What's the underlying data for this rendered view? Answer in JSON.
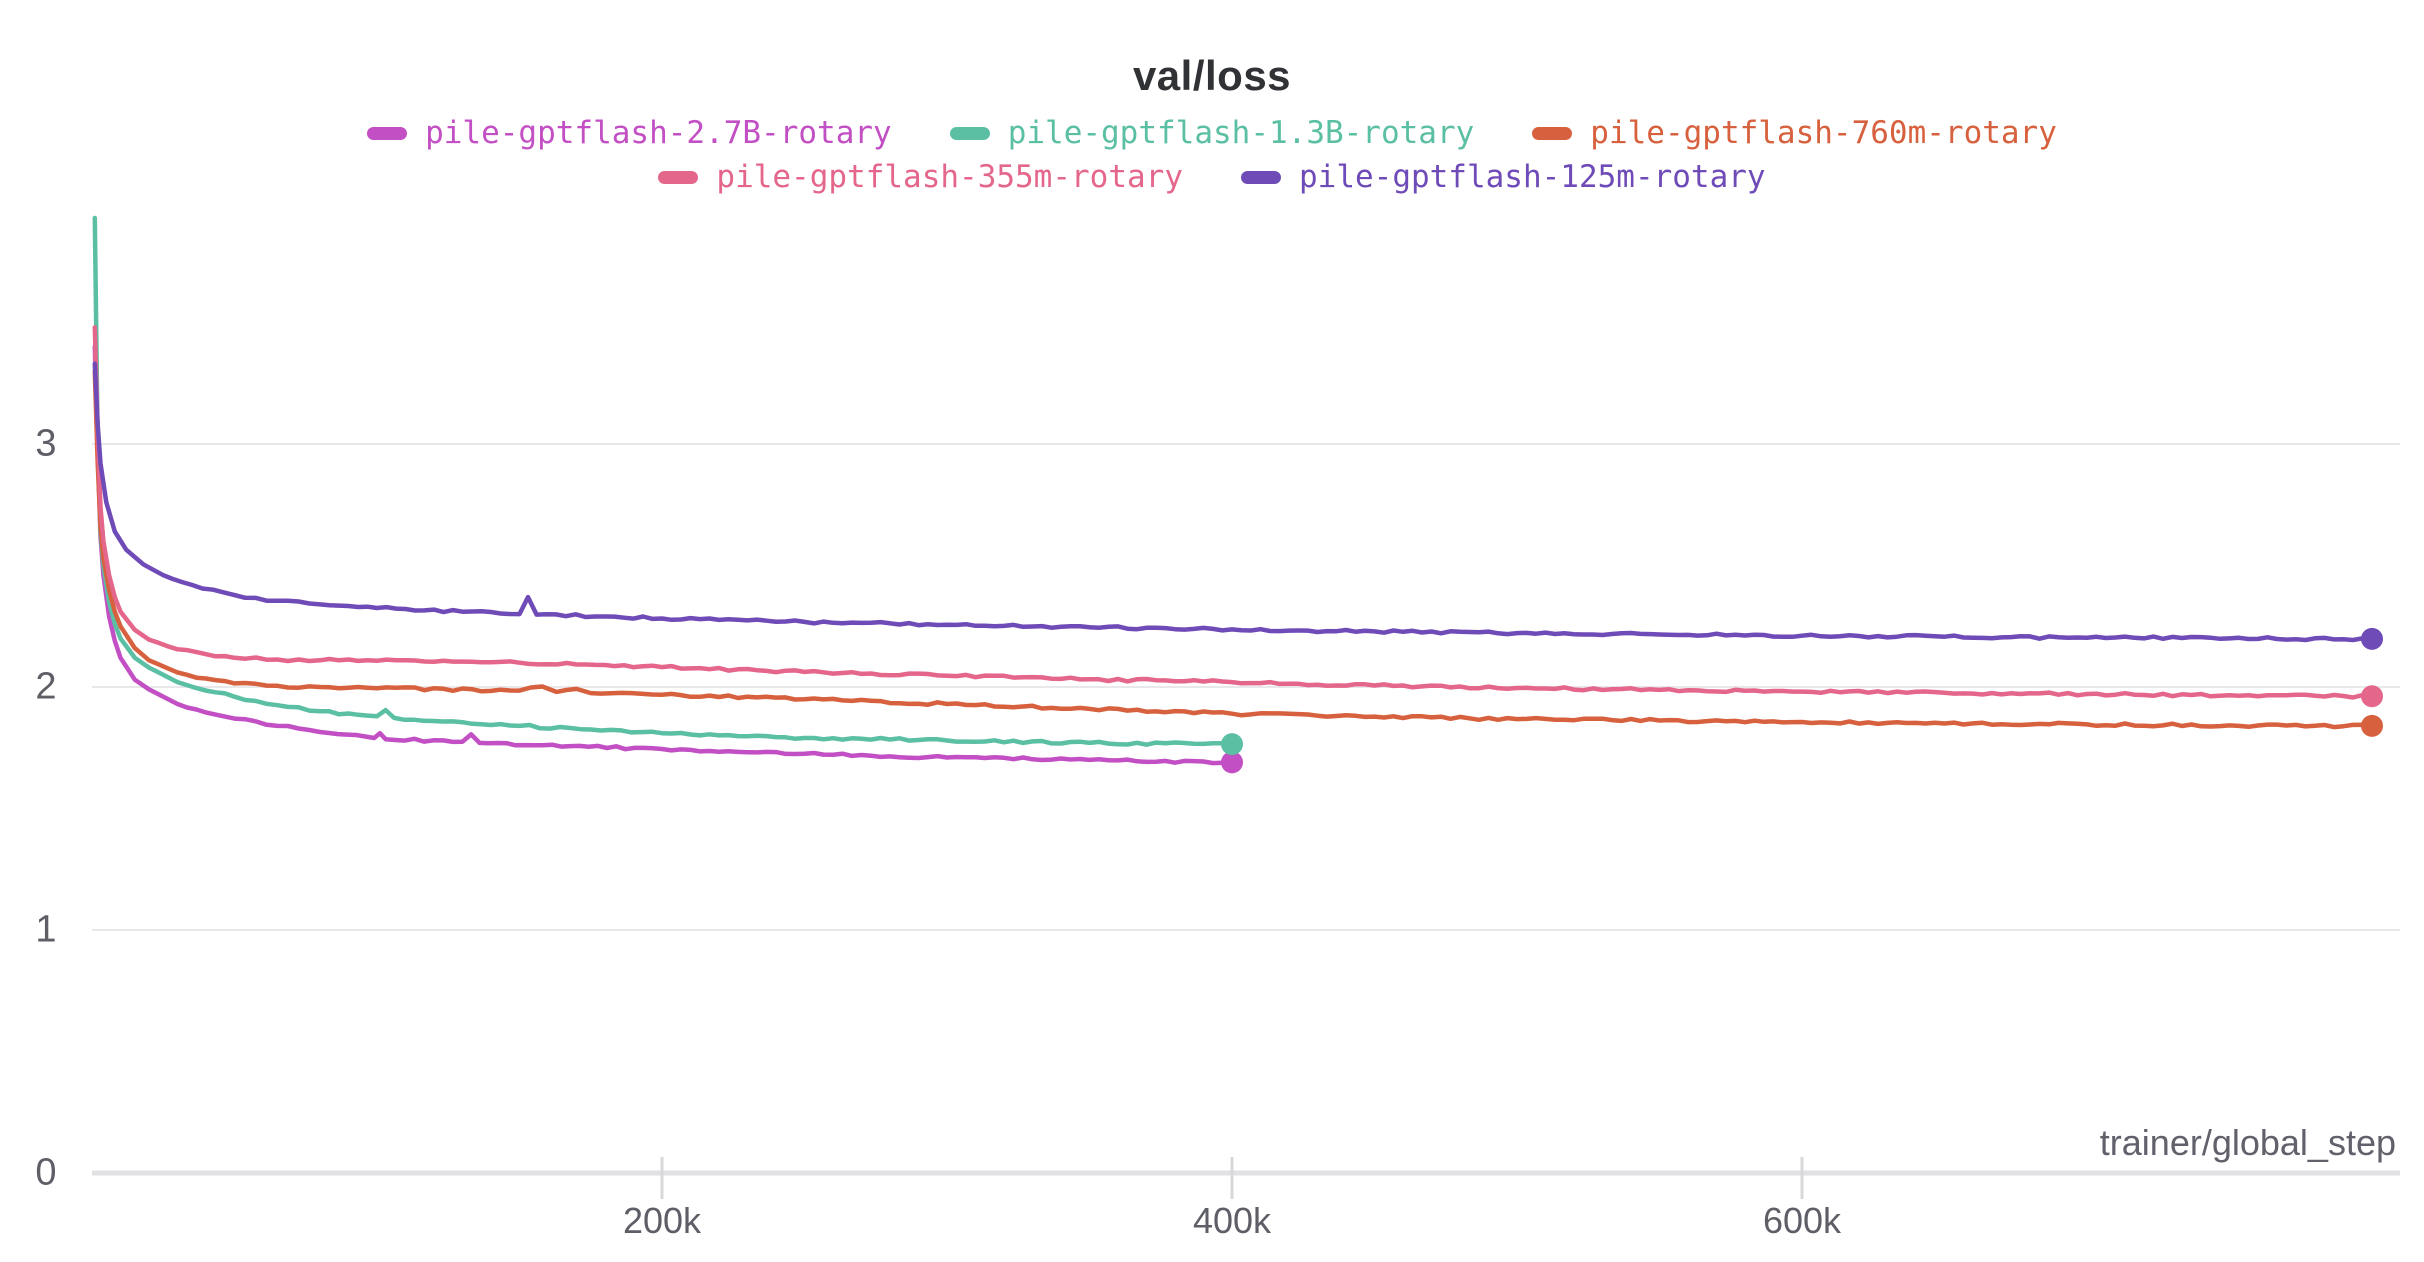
{
  "title": "val/loss",
  "x_axis": {
    "label": "trainer/global_step",
    "ticks": [
      {
        "label": "200k",
        "value_k": 200
      },
      {
        "label": "400k",
        "value_k": 400
      },
      {
        "label": "600k",
        "value_k": 600
      }
    ],
    "range_k": [
      0,
      810
    ]
  },
  "y_axis": {
    "ticks": [
      {
        "label": "0",
        "value": 0
      },
      {
        "label": "1",
        "value": 1
      },
      {
        "label": "2",
        "value": 2
      },
      {
        "label": "3",
        "value": 3
      }
    ],
    "range": [
      0,
      3.96
    ]
  },
  "chart_data": {
    "type": "line",
    "title": "val/loss",
    "xlabel": "trainer/global_step",
    "ylabel": "",
    "x_units": "thousands of trainer global steps",
    "grid": "horizontal",
    "legend_position": "top",
    "series": [
      {
        "name": "pile-gptflash-2.7B-rotary",
        "color": "#C24FC4",
        "end_marker": true,
        "points": [
          [
            1,
            3.4
          ],
          [
            2,
            2.98
          ],
          [
            3,
            2.62
          ],
          [
            4,
            2.46
          ],
          [
            6,
            2.29
          ],
          [
            8,
            2.19
          ],
          [
            10,
            2.12
          ],
          [
            15,
            2.03
          ],
          [
            20,
            1.99
          ],
          [
            30,
            1.93
          ],
          [
            40,
            1.895
          ],
          [
            50,
            1.87
          ],
          [
            65,
            1.84
          ],
          [
            80,
            1.815
          ],
          [
            99,
            1.79
          ],
          [
            101,
            1.81
          ],
          [
            103,
            1.785
          ],
          [
            130,
            1.775
          ],
          [
            133,
            1.805
          ],
          [
            136,
            1.77
          ],
          [
            155,
            1.76
          ],
          [
            200,
            1.745
          ],
          [
            250,
            1.725
          ],
          [
            300,
            1.71
          ],
          [
            350,
            1.7
          ],
          [
            400,
            1.69
          ]
        ]
      },
      {
        "name": "pile-gptflash-1.3B-rotary",
        "color": "#5BBFA3",
        "end_marker": true,
        "points": [
          [
            1,
            3.93
          ],
          [
            2,
            3.0
          ],
          [
            3,
            2.64
          ],
          [
            4,
            2.5
          ],
          [
            6,
            2.35
          ],
          [
            8,
            2.26
          ],
          [
            10,
            2.2
          ],
          [
            15,
            2.12
          ],
          [
            20,
            2.08
          ],
          [
            30,
            2.02
          ],
          [
            40,
            1.985
          ],
          [
            50,
            1.96
          ],
          [
            65,
            1.925
          ],
          [
            80,
            1.9
          ],
          [
            100,
            1.88
          ],
          [
            103,
            1.905
          ],
          [
            106,
            1.873
          ],
          [
            130,
            1.855
          ],
          [
            150,
            1.84
          ],
          [
            175,
            1.825
          ],
          [
            200,
            1.81
          ],
          [
            250,
            1.79
          ],
          [
            300,
            1.78
          ],
          [
            350,
            1.77
          ],
          [
            400,
            1.765
          ]
        ]
      },
      {
        "name": "pile-gptflash-760m-rotary",
        "color": "#D7613E",
        "end_marker": true,
        "points": [
          [
            1,
            3.3
          ],
          [
            2,
            2.92
          ],
          [
            3,
            2.66
          ],
          [
            4,
            2.53
          ],
          [
            6,
            2.4
          ],
          [
            8,
            2.31
          ],
          [
            10,
            2.25
          ],
          [
            15,
            2.16
          ],
          [
            20,
            2.11
          ],
          [
            30,
            2.06
          ],
          [
            40,
            2.035
          ],
          [
            50,
            2.015
          ],
          [
            65,
            2.005
          ],
          [
            80,
            2.0
          ],
          [
            100,
            1.995
          ],
          [
            150,
            1.985
          ],
          [
            158,
            2.002
          ],
          [
            163,
            1.98
          ],
          [
            170,
            1.992
          ],
          [
            175,
            1.975
          ],
          [
            200,
            1.968
          ],
          [
            250,
            1.95
          ],
          [
            300,
            1.93
          ],
          [
            350,
            1.91
          ],
          [
            400,
            1.89
          ],
          [
            450,
            1.878
          ],
          [
            500,
            1.868
          ],
          [
            550,
            1.862
          ],
          [
            600,
            1.856
          ],
          [
            650,
            1.85
          ],
          [
            700,
            1.846
          ],
          [
            750,
            1.842
          ],
          [
            800,
            1.84
          ]
        ]
      },
      {
        "name": "pile-gptflash-355m-rotary",
        "color": "#E4668B",
        "end_marker": true,
        "points": [
          [
            1,
            3.48
          ],
          [
            2,
            3.05
          ],
          [
            3,
            2.74
          ],
          [
            4,
            2.6
          ],
          [
            6,
            2.46
          ],
          [
            8,
            2.37
          ],
          [
            10,
            2.31
          ],
          [
            15,
            2.235
          ],
          [
            20,
            2.195
          ],
          [
            30,
            2.155
          ],
          [
            40,
            2.135
          ],
          [
            50,
            2.12
          ],
          [
            65,
            2.113
          ],
          [
            80,
            2.11
          ],
          [
            100,
            2.108
          ],
          [
            150,
            2.1
          ],
          [
            200,
            2.082
          ],
          [
            250,
            2.062
          ],
          [
            300,
            2.046
          ],
          [
            350,
            2.032
          ],
          [
            400,
            2.02
          ],
          [
            450,
            2.006
          ],
          [
            500,
            1.996
          ],
          [
            550,
            1.988
          ],
          [
            600,
            1.981
          ],
          [
            650,
            1.976
          ],
          [
            700,
            1.971
          ],
          [
            750,
            1.966
          ],
          [
            800,
            1.962
          ]
        ]
      },
      {
        "name": "pile-gptflash-125m-rotary",
        "color": "#6F4BB8",
        "end_marker": true,
        "points": [
          [
            1,
            3.33
          ],
          [
            2,
            3.08
          ],
          [
            3,
            2.92
          ],
          [
            5,
            2.76
          ],
          [
            8,
            2.64
          ],
          [
            12,
            2.565
          ],
          [
            18,
            2.505
          ],
          [
            25,
            2.46
          ],
          [
            35,
            2.42
          ],
          [
            50,
            2.378
          ],
          [
            65,
            2.355
          ],
          [
            80,
            2.34
          ],
          [
            100,
            2.325
          ],
          [
            130,
            2.31
          ],
          [
            150,
            2.3
          ],
          [
            153,
            2.37
          ],
          [
            156,
            2.298
          ],
          [
            180,
            2.29
          ],
          [
            200,
            2.282
          ],
          [
            250,
            2.268
          ],
          [
            300,
            2.256
          ],
          [
            350,
            2.246
          ],
          [
            400,
            2.237
          ],
          [
            450,
            2.229
          ],
          [
            500,
            2.222
          ],
          [
            550,
            2.216
          ],
          [
            600,
            2.211
          ],
          [
            650,
            2.207
          ],
          [
            700,
            2.203
          ],
          [
            750,
            2.2
          ],
          [
            800,
            2.198
          ]
        ]
      }
    ]
  }
}
